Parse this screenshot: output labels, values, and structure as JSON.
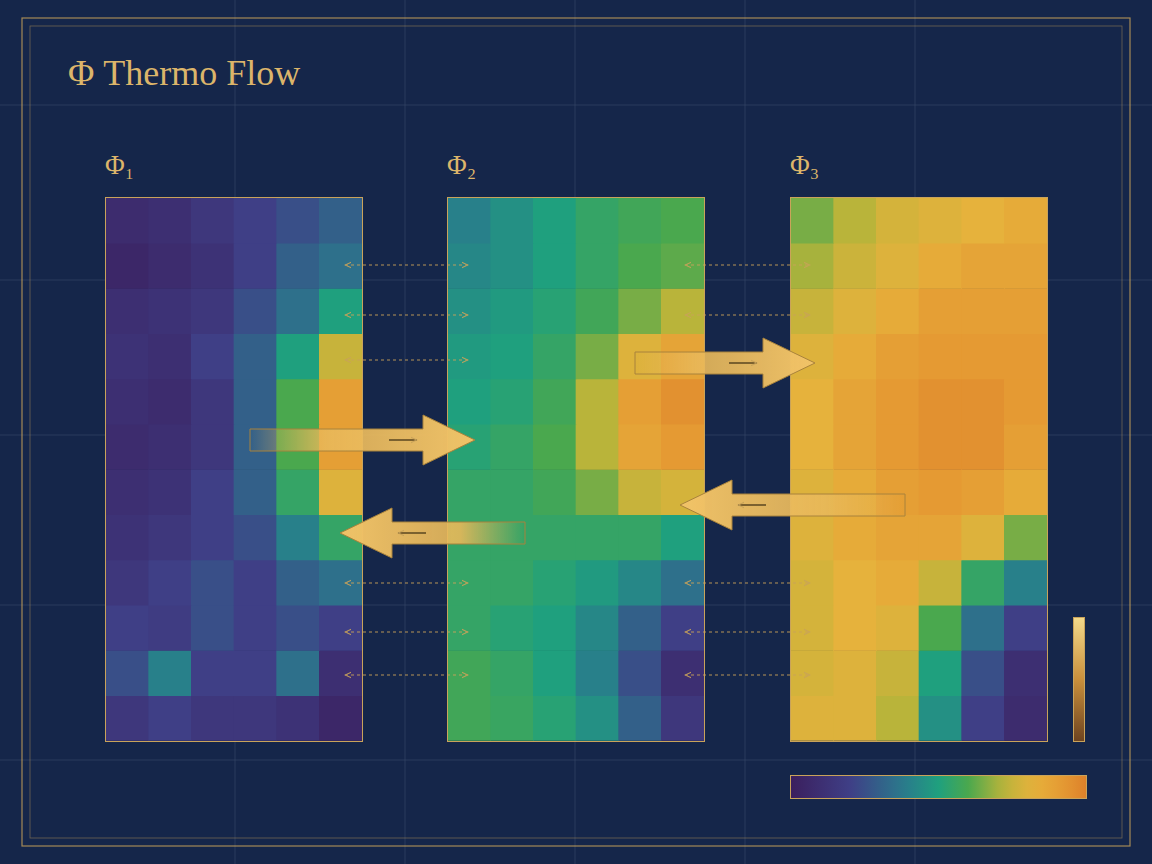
{
  "title": "Φ Thermo Flow",
  "colorbar": {
    "range": [
      0,
      1
    ],
    "tick_labels": false
  },
  "chart_data": [
    {
      "type": "heatmap",
      "title": "Φ₁",
      "grid": true,
      "tick_labels": false,
      "cells": [
        [
          0.08,
          0.1,
          0.15,
          0.2,
          0.25,
          0.3
        ],
        [
          0.05,
          0.08,
          0.12,
          0.2,
          0.3,
          0.35
        ],
        [
          0.1,
          0.12,
          0.15,
          0.25,
          0.35,
          0.5
        ],
        [
          0.12,
          0.1,
          0.2,
          0.3,
          0.5,
          0.75
        ],
        [
          0.1,
          0.08,
          0.15,
          0.3,
          0.6,
          0.9
        ],
        [
          0.08,
          0.1,
          0.15,
          0.3,
          0.6,
          0.9
        ],
        [
          0.1,
          0.12,
          0.2,
          0.3,
          0.55,
          0.8
        ],
        [
          0.12,
          0.15,
          0.2,
          0.25,
          0.4,
          0.55
        ],
        [
          0.15,
          0.2,
          0.25,
          0.2,
          0.3,
          0.35
        ],
        [
          0.2,
          0.18,
          0.25,
          0.2,
          0.25,
          0.2
        ],
        [
          0.25,
          0.4,
          0.2,
          0.2,
          0.35,
          0.1
        ],
        [
          0.15,
          0.2,
          0.15,
          0.15,
          0.12,
          0.05
        ]
      ]
    },
    {
      "type": "heatmap",
      "title": "Φ₂",
      "grid": true,
      "tick_labels": false,
      "cells": [
        [
          0.4,
          0.45,
          0.5,
          0.55,
          0.58,
          0.6
        ],
        [
          0.42,
          0.45,
          0.5,
          0.55,
          0.6,
          0.62
        ],
        [
          0.45,
          0.48,
          0.52,
          0.58,
          0.65,
          0.72
        ],
        [
          0.48,
          0.5,
          0.55,
          0.65,
          0.8,
          0.88
        ],
        [
          0.5,
          0.52,
          0.58,
          0.72,
          0.9,
          0.95
        ],
        [
          0.52,
          0.55,
          0.6,
          0.72,
          0.88,
          0.92
        ],
        [
          0.55,
          0.55,
          0.58,
          0.65,
          0.75,
          0.78
        ],
        [
          0.55,
          0.55,
          0.55,
          0.55,
          0.55,
          0.5
        ],
        [
          0.55,
          0.55,
          0.52,
          0.48,
          0.42,
          0.35
        ],
        [
          0.55,
          0.52,
          0.5,
          0.42,
          0.3,
          0.2
        ],
        [
          0.58,
          0.55,
          0.5,
          0.4,
          0.25,
          0.1
        ],
        [
          0.58,
          0.56,
          0.52,
          0.45,
          0.3,
          0.15
        ]
      ]
    },
    {
      "type": "heatmap",
      "title": "Φ₃",
      "grid": true,
      "tick_labels": false,
      "cells": [
        [
          0.65,
          0.72,
          0.78,
          0.8,
          0.82,
          0.85
        ],
        [
          0.7,
          0.76,
          0.8,
          0.85,
          0.88,
          0.88
        ],
        [
          0.75,
          0.8,
          0.85,
          0.9,
          0.9,
          0.9
        ],
        [
          0.8,
          0.85,
          0.9,
          0.92,
          0.92,
          0.92
        ],
        [
          0.82,
          0.88,
          0.92,
          0.95,
          0.95,
          0.92
        ],
        [
          0.82,
          0.88,
          0.92,
          0.95,
          0.95,
          0.9
        ],
        [
          0.8,
          0.85,
          0.9,
          0.92,
          0.9,
          0.85
        ],
        [
          0.8,
          0.85,
          0.88,
          0.88,
          0.8,
          0.65
        ],
        [
          0.78,
          0.82,
          0.85,
          0.75,
          0.55,
          0.4
        ],
        [
          0.78,
          0.82,
          0.8,
          0.6,
          0.35,
          0.2
        ],
        [
          0.78,
          0.8,
          0.75,
          0.5,
          0.25,
          0.1
        ],
        [
          0.8,
          0.8,
          0.72,
          0.45,
          0.2,
          0.08
        ]
      ]
    }
  ]
}
